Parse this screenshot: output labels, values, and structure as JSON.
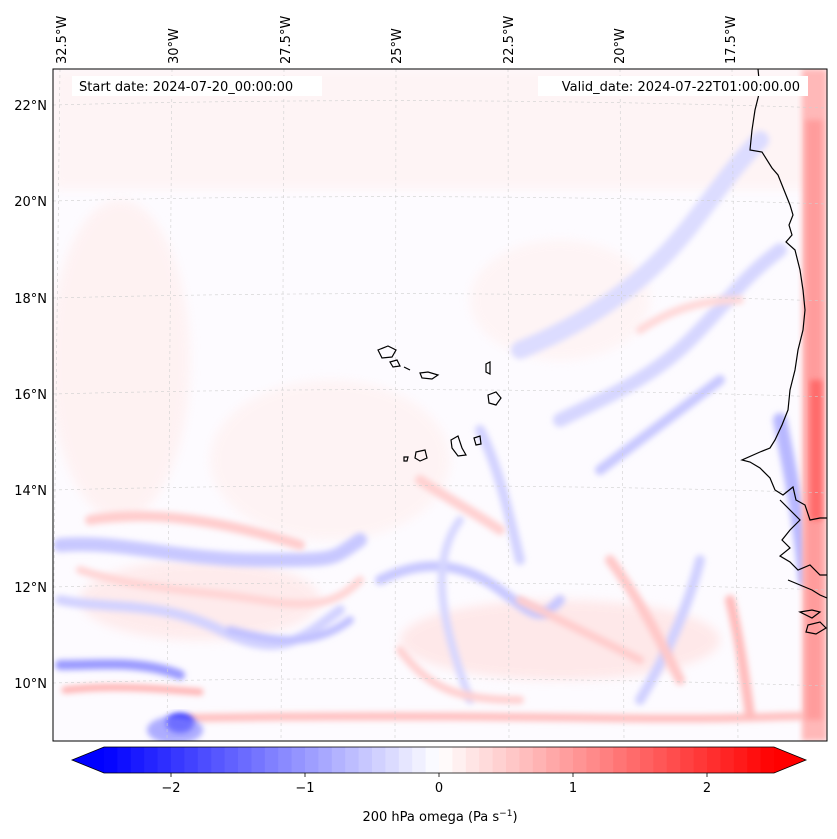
{
  "map": {
    "start_date": "Start date: 2024-07-20_00:00:00",
    "valid_date": "Valid_date: 2024-07-22T01:00:00.00",
    "lon_labels": [
      "32.5°W",
      "30°W",
      "27.5°W",
      "25°W",
      "22.5°W",
      "20°W",
      "17.5°W"
    ],
    "lat_labels": [
      "22°N",
      "20°N",
      "18°N",
      "16°N",
      "14°N",
      "12°N",
      "10°N"
    ]
  },
  "colorbar": {
    "label_prefix": "200 hPa omega (Pa s",
    "label_exponent": "−1",
    "label_suffix": ")",
    "ticks": [
      {
        "text": "−2",
        "value": -2
      },
      {
        "text": "−1",
        "value": -1
      },
      {
        "text": "0",
        "value": 0
      },
      {
        "text": "1",
        "value": 1
      },
      {
        "text": "2",
        "value": 2
      }
    ],
    "vmin": -2.5,
    "vmax": 2.5,
    "min_color": "#0000ff",
    "mid_color": "#ffffff",
    "max_color": "#ff0000"
  }
}
